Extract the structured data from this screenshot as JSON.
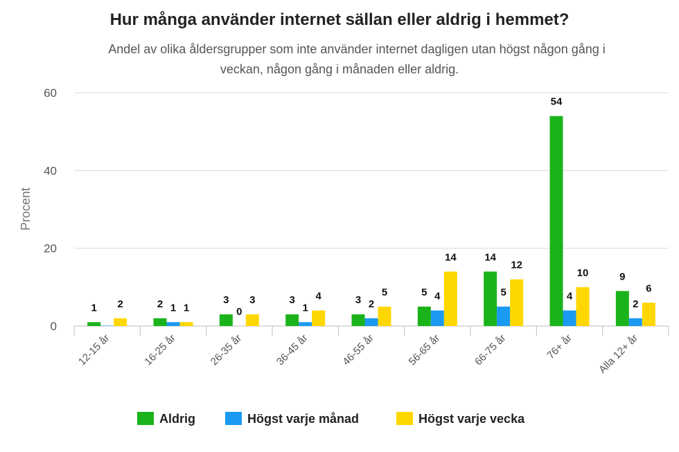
{
  "chart_data": {
    "type": "bar",
    "title": "Hur många använder internet sällan eller aldrig i hemmet?",
    "subtitle_lines": [
      "Andel av olika åldersgrupper som inte använder internet dagligen utan högst någon gång i",
      "veckan, någon gång i månaden eller aldrig."
    ],
    "ylabel": "Procent",
    "xlabel": "",
    "ylim": [
      0,
      60
    ],
    "yticks": [
      0,
      20,
      40,
      60
    ],
    "grid": true,
    "legend_position": "bottom",
    "categories": [
      "12-15 år",
      "16-25 år",
      "26-35 år",
      "36-45 år",
      "46-55 år",
      "56-65 år",
      "66-75 år",
      "76+ år",
      "Alla 12+ år"
    ],
    "series": [
      {
        "name": "Aldrig",
        "color": "#1bb31b",
        "values": [
          1,
          2,
          3,
          3,
          3,
          5,
          14,
          54,
          9
        ],
        "labels": [
          "1",
          "2",
          "3",
          "3",
          "3",
          "5",
          "14",
          "54",
          "9"
        ]
      },
      {
        "name": "Högst varje månad",
        "color": "#1a9af0",
        "values": [
          0.1,
          1,
          0,
          1,
          2,
          4,
          5,
          4,
          2
        ],
        "labels": [
          "",
          "1",
          "0",
          "1",
          "2",
          "4",
          "5",
          "4",
          "2"
        ]
      },
      {
        "name": "Högst varje vecka",
        "color": "#ffd700",
        "values": [
          2,
          1,
          3,
          4,
          5,
          14,
          12,
          10,
          6
        ],
        "labels": [
          "2",
          "1",
          "3",
          "4",
          "5",
          "14",
          "12",
          "10",
          "6"
        ]
      }
    ]
  }
}
